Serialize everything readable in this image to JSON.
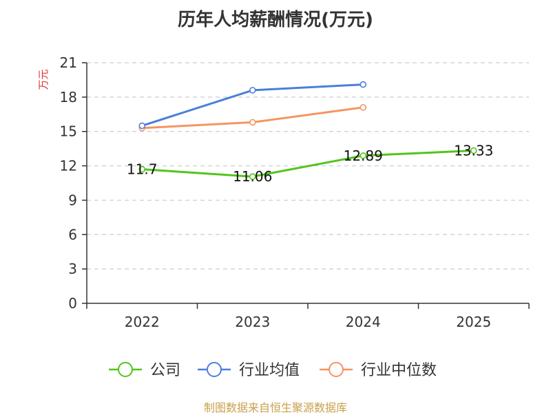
{
  "chart_data": {
    "type": "line",
    "title": "历年人均薪酬情况(万元)",
    "ylabel": "万元",
    "ylim": [
      0,
      21
    ],
    "yticks": [
      0,
      3,
      6,
      9,
      12,
      15,
      18,
      21
    ],
    "categories": [
      "2022",
      "2023",
      "2024",
      "2025"
    ],
    "grid": true,
    "legend_position": "bottom",
    "series": [
      {
        "name": "公司",
        "color": "#52c41a",
        "values": [
          11.7,
          11.06,
          12.89,
          13.33
        ],
        "labels": [
          "11.7",
          "11.06",
          "12.89",
          "13.33"
        ]
      },
      {
        "name": "行业均值",
        "color": "#4a7fdc",
        "values": [
          15.5,
          18.6,
          19.1,
          null
        ]
      },
      {
        "name": "行业中位数",
        "color": "#f59560",
        "values": [
          15.3,
          15.8,
          17.1,
          null
        ]
      }
    ],
    "source": "制图数据来自恒生聚源数据库",
    "colors": {
      "axis": "#333333",
      "grid": "#cccccc",
      "ylabel": "#e03030"
    }
  }
}
